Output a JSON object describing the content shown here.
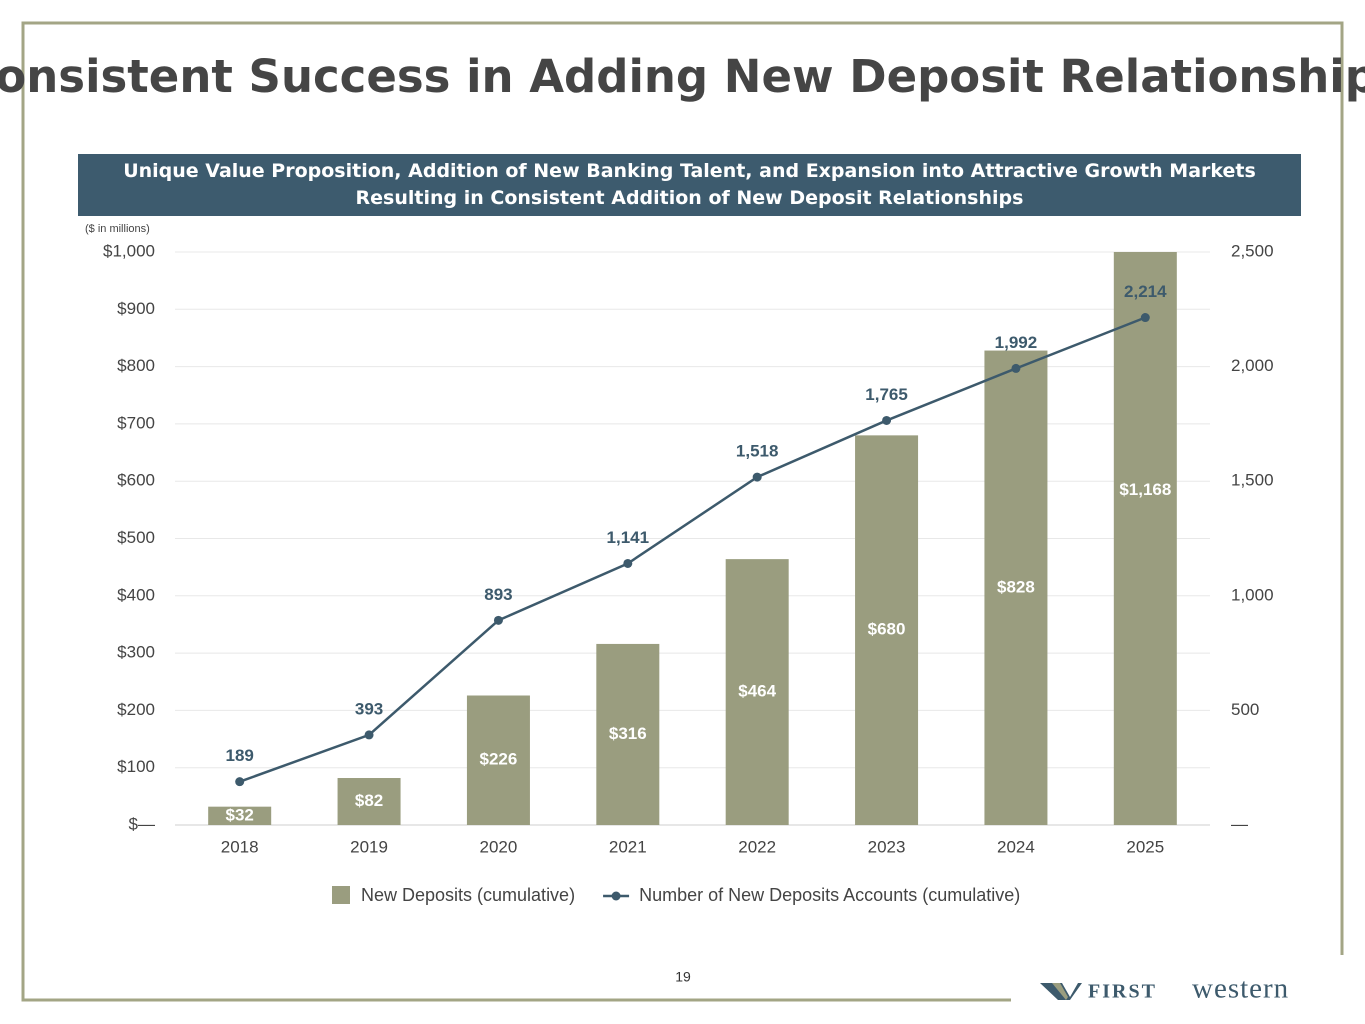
{
  "chart_data": {
    "type": "bar_line",
    "title": "Consistent Success in Adding New Deposit Relationships",
    "subtitle": "Unique Value Proposition, Addition of New Banking Talent, and Expansion into Attractive Growth Markets Resulting in Consistent Addition of New Deposit Relationships",
    "y_axis_label": "($ in millions)",
    "categories": [
      "2018",
      "2019",
      "2020",
      "2021",
      "2022",
      "2023",
      "2024",
      "2025"
    ],
    "series": [
      {
        "name": "New Deposits (cumulative)",
        "type": "bar",
        "color": "#9a9d7f",
        "values": [
          32,
          82,
          226,
          316,
          464,
          680,
          828,
          1168
        ],
        "value_labels": [
          "$32",
          "$82",
          "$226",
          "$316",
          "$464",
          "$680",
          "$828",
          "$1,168"
        ]
      },
      {
        "name": "Number of New Deposits Accounts (cumulative)",
        "type": "line",
        "axis": "y2",
        "color": "#3d5a6c",
        "values": [
          189,
          393,
          893,
          1141,
          1518,
          1765,
          1992,
          2214
        ],
        "value_labels": [
          "189",
          "393",
          "893",
          "1,141",
          "1,518",
          "1,765",
          "1,992",
          "2,214"
        ]
      }
    ],
    "ylim": [
      0,
      1000
    ],
    "yticks": [
      {
        "value": 0,
        "label": "$—"
      },
      {
        "value": 100,
        "label": "$100"
      },
      {
        "value": 200,
        "label": "$200"
      },
      {
        "value": 300,
        "label": "$300"
      },
      {
        "value": 400,
        "label": "$400"
      },
      {
        "value": 500,
        "label": "$500"
      },
      {
        "value": 600,
        "label": "$600"
      },
      {
        "value": 700,
        "label": "$700"
      },
      {
        "value": 800,
        "label": "$800"
      },
      {
        "value": 900,
        "label": "$900"
      },
      {
        "value": 1000,
        "label": "$1,000"
      }
    ],
    "y2lim": [
      0,
      2500
    ],
    "y2ticks": [
      {
        "value": 0,
        "label": "—"
      },
      500,
      {
        "value": 1000,
        "label": "1,000"
      },
      {
        "value": 1500,
        "label": "1,500"
      },
      {
        "value": 2000,
        "label": "2,000"
      },
      {
        "value": 2500,
        "label": "2,500"
      }
    ],
    "grid": true,
    "legend": "bottom"
  },
  "footer": {
    "page_number": "19",
    "logo_first": "FIRST",
    "logo_second": "western"
  }
}
